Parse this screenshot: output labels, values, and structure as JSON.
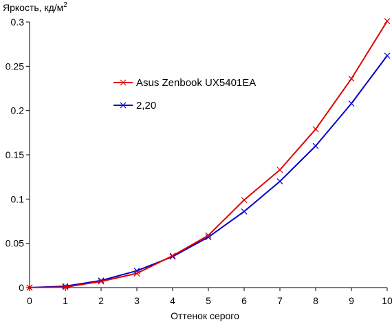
{
  "chart_data": {
    "type": "line",
    "ylabel": "Яркость, кд/м",
    "ylabel_superscript": "2",
    "xlabel": "Оттенок серого",
    "xlim": [
      0,
      10
    ],
    "ylim": [
      0,
      0.3
    ],
    "x_ticks": [
      0,
      1,
      2,
      3,
      4,
      5,
      6,
      7,
      8,
      9,
      10
    ],
    "x_tick_labels": [
      "0",
      "1",
      "2",
      "3",
      "4",
      "5",
      "6",
      "7",
      "8",
      "9",
      "10"
    ],
    "y_ticks": [
      0,
      0.05,
      0.1,
      0.15,
      0.2,
      0.25,
      0.3
    ],
    "y_tick_labels": [
      "0",
      "0.05",
      "0.1",
      "0.15",
      "0.2",
      "0.25",
      "0.3"
    ],
    "grid": false,
    "legend_position": "center-left",
    "x": [
      0,
      1,
      2,
      3,
      4,
      5,
      6,
      7,
      8,
      9,
      10
    ],
    "series": [
      {
        "name": "Asus Zenbook UX5401EA",
        "color": "#e00000",
        "marker": "x-icon",
        "values": [
          0.0,
          0.0005,
          0.007,
          0.016,
          0.036,
          0.059,
          0.099,
          0.133,
          0.179,
          0.236,
          0.301
        ]
      },
      {
        "name": "2,20",
        "color": "#0000c8",
        "marker": "x-icon",
        "values": [
          0.0,
          0.0016,
          0.008,
          0.019,
          0.035,
          0.057,
          0.086,
          0.12,
          0.16,
          0.208,
          0.262
        ]
      }
    ]
  }
}
